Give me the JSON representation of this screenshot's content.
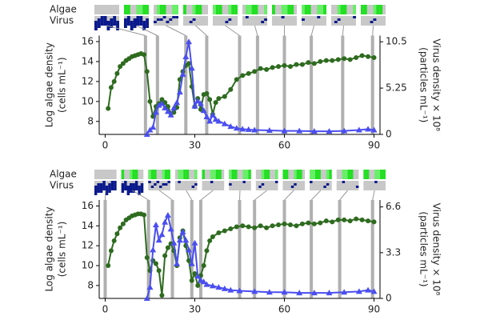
{
  "chart_data": [
    {
      "type": "line",
      "strip_labels": [
        "Algae",
        "Virus"
      ],
      "ylabel": "Log algae density",
      "ylabel_unit": "(cells mL⁻¹)",
      "y2label": "Virus density × 10⁸",
      "y2label_unit": "(particles mL⁻¹)",
      "xlim": [
        -2,
        92
      ],
      "xticks": [
        0,
        30,
        60,
        90
      ],
      "ylim": [
        6.7,
        16.6
      ],
      "yticks": [
        8,
        10,
        12,
        14,
        16
      ],
      "y2lim": [
        0,
        11.2
      ],
      "y2ticks": [
        0,
        5.25,
        10.5
      ],
      "sample_days": [
        13.5,
        17.5,
        27,
        34,
        45,
        51,
        60,
        69,
        79.5,
        89.5
      ],
      "series": [
        {
          "name": "Algae",
          "color": "#2e6b1f",
          "marker": "circle",
          "x": [
            1,
            2,
            3,
            4,
            5,
            6,
            7,
            8,
            9,
            10,
            11,
            12,
            13,
            14,
            15,
            16,
            17,
            18,
            19,
            20,
            21,
            22,
            23,
            24,
            25,
            26,
            27,
            28,
            29,
            30,
            31,
            32,
            33,
            34,
            35,
            36,
            37,
            38,
            40,
            42,
            44,
            46,
            48,
            50,
            52,
            54,
            56,
            58,
            60,
            62,
            64,
            66,
            68,
            70,
            72,
            74,
            76,
            78,
            80,
            82,
            84,
            86,
            88,
            90
          ],
          "values": [
            9.3,
            11.4,
            12,
            12.8,
            13.5,
            13.8,
            14.1,
            14.3,
            14.5,
            14.6,
            14.7,
            14.8,
            14.7,
            13,
            10,
            8.5,
            9.5,
            9.8,
            10.2,
            9.9,
            9.5,
            8.8,
            8.9,
            9.4,
            12.2,
            13,
            13.6,
            13.8,
            11.5,
            9.5,
            10.3,
            9.2,
            10.7,
            10.8,
            10.2,
            8.7,
            9.9,
            10.3,
            10.5,
            11.2,
            12.2,
            12.6,
            12.8,
            13,
            13.3,
            13.2,
            13.4,
            13.5,
            13.6,
            13.5,
            13.7,
            13.7,
            13.9,
            13.8,
            14,
            14.1,
            14.1,
            14.2,
            14.3,
            14.2,
            14.4,
            14.6,
            14.5,
            14.4
          ]
        },
        {
          "name": "Virus",
          "color": "#4a4ef0",
          "marker": "triangle",
          "axis": "y2",
          "x": [
            14,
            15,
            16,
            17,
            18,
            19,
            20,
            21,
            22,
            23,
            24,
            25,
            26,
            27,
            28,
            29,
            30,
            31,
            32,
            33,
            34,
            35,
            36,
            37,
            38,
            40,
            42,
            44,
            46,
            48,
            50,
            55,
            60,
            65,
            70,
            75,
            80,
            85,
            88,
            90
          ],
          "values": [
            0,
            0.5,
            0.8,
            2.5,
            3.3,
            3.5,
            3,
            2.6,
            2.2,
            3,
            3.6,
            4.8,
            6.8,
            8.8,
            10.5,
            7.5,
            3.2,
            3.8,
            3.5,
            2.7,
            2,
            1.5,
            2.2,
            1.7,
            1.5,
            1.2,
            0.9,
            0.7,
            0.6,
            0.55,
            0.5,
            0.45,
            0.4,
            0.4,
            0.35,
            0.35,
            0.4,
            0.5,
            0.6,
            0.5
          ]
        }
      ]
    },
    {
      "type": "line",
      "strip_labels": [
        "Algae",
        "Virus"
      ],
      "ylabel": "Log algae density",
      "ylabel_unit": "(cells mL⁻¹)",
      "y2label": "Virus density × 10⁸",
      "y2label_unit": "(particles mL⁻¹)",
      "xlim": [
        -2,
        92
      ],
      "xticks": [
        0,
        30,
        60,
        90
      ],
      "ylim": [
        6.7,
        16.6
      ],
      "yticks": [
        8,
        10,
        12,
        14,
        16
      ],
      "y2lim": [
        0,
        7.1
      ],
      "y2ticks": [
        0,
        3.3,
        6.6
      ],
      "sample_days": [
        0,
        14.5,
        22.5,
        29,
        32,
        45,
        50,
        60,
        69,
        78.5,
        89.5
      ],
      "series": [
        {
          "name": "Algae",
          "color": "#2e6b1f",
          "marker": "circle",
          "x": [
            1,
            2,
            3,
            4,
            5,
            6,
            7,
            8,
            9,
            10,
            11,
            12,
            13,
            14,
            15,
            16,
            17,
            18,
            19,
            20,
            21,
            22,
            23,
            24,
            25,
            26,
            27,
            28,
            29,
            30,
            31,
            32,
            33,
            34,
            35,
            36,
            38,
            40,
            42,
            44,
            46,
            48,
            50,
            52,
            54,
            56,
            58,
            60,
            62,
            64,
            66,
            68,
            70,
            72,
            74,
            76,
            78,
            80,
            82,
            84,
            86,
            88,
            90
          ],
          "values": [
            10,
            11.5,
            12.5,
            13.2,
            13.8,
            14.2,
            14.6,
            14.8,
            15,
            15.1,
            15.2,
            15.2,
            15.1,
            10.8,
            9.5,
            10.5,
            10.2,
            9.5,
            7,
            11,
            11.8,
            12.2,
            11.5,
            10,
            12.8,
            13.5,
            12,
            10.5,
            8.5,
            9.2,
            8,
            9,
            10,
            11.5,
            12.5,
            12.9,
            13.3,
            13.5,
            13.7,
            13.9,
            14,
            13.9,
            13.8,
            14,
            13.8,
            14,
            14.1,
            14.2,
            14.1,
            14,
            14.2,
            14.3,
            14.2,
            14.3,
            14.5,
            14.4,
            14.6,
            14.6,
            14.5,
            14.7,
            14.6,
            14.5,
            14.4
          ]
        },
        {
          "name": "Virus",
          "color": "#4a4ef0",
          "marker": "triangle",
          "axis": "y2",
          "x": [
            14,
            15,
            16,
            17,
            18,
            19,
            20,
            21,
            22,
            23,
            24,
            25,
            26,
            27,
            28,
            29,
            30,
            31,
            32,
            33,
            34,
            36,
            38,
            40,
            42,
            45,
            50,
            55,
            60,
            65,
            70,
            75,
            80,
            85,
            88,
            90
          ],
          "values": [
            0,
            0.8,
            3.5,
            5.3,
            4.2,
            4.6,
            5.5,
            6,
            5,
            4,
            2.5,
            4.2,
            4.8,
            4.2,
            3.5,
            2.5,
            4,
            1.6,
            1.3,
            1.2,
            1,
            0.9,
            0.8,
            0.7,
            0.6,
            0.55,
            0.5,
            0.45,
            0.45,
            0.4,
            0.4,
            0.4,
            0.45,
            0.5,
            0.6,
            0.5
          ]
        }
      ]
    }
  ]
}
